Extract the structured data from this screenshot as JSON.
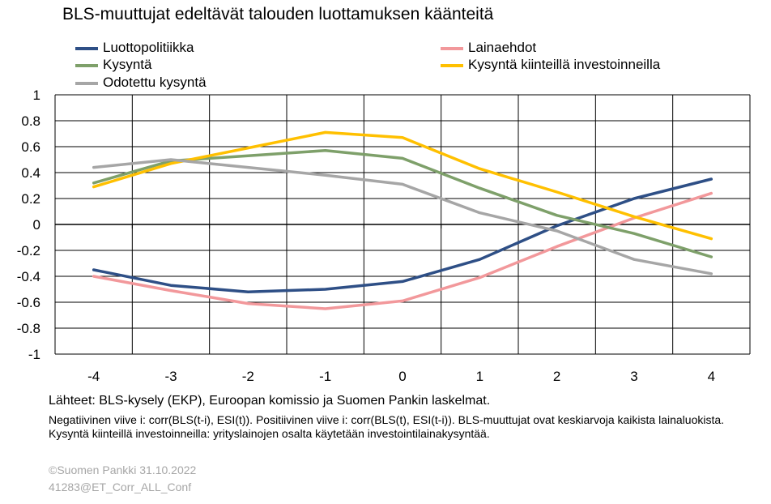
{
  "chart_data": {
    "type": "line",
    "title": "BLS-muuttujat edeltävät talouden luottamuksen käänteitä",
    "xlabel": "",
    "ylabel": "",
    "x": [
      -4,
      -3,
      -2,
      -1,
      0,
      1,
      2,
      3,
      4
    ],
    "x_tick_labels": [
      "-4",
      "-3",
      "-2",
      "-1",
      "0",
      "1",
      "2",
      "3",
      "4"
    ],
    "ylim": [
      -1,
      1
    ],
    "y_ticks": [
      1,
      0.8,
      0.6,
      0.4,
      0.2,
      0,
      -0.2,
      -0.4,
      -0.6,
      -0.8,
      -1
    ],
    "y_tick_labels": [
      "1",
      "0.8",
      "0.6",
      "0.4",
      "0.2",
      "0",
      "-0.2",
      "-0.4",
      "-0.6",
      "-0.8",
      "-1"
    ],
    "grid": true,
    "legend_position": "top",
    "series": [
      {
        "name": "Luottopolitiikka",
        "color": "#2e4f86",
        "values": [
          -0.35,
          -0.47,
          -0.52,
          -0.5,
          -0.44,
          -0.27,
          -0.01,
          0.2,
          0.35
        ]
      },
      {
        "name": "Lainaehdot",
        "color": "#f2989b",
        "values": [
          -0.4,
          -0.51,
          -0.61,
          -0.65,
          -0.59,
          -0.41,
          -0.17,
          0.05,
          0.24
        ]
      },
      {
        "name": "Kysyntä",
        "color": "#7ea06a",
        "values": [
          0.32,
          0.49,
          0.53,
          0.57,
          0.51,
          0.28,
          0.07,
          -0.07,
          -0.25
        ]
      },
      {
        "name": "Kysyntä kiinteillä investoinneilla",
        "color": "#ffc000",
        "values": [
          0.29,
          0.47,
          0.59,
          0.71,
          0.67,
          0.43,
          0.25,
          0.06,
          -0.11
        ]
      },
      {
        "name": "Odotettu kysyntä",
        "color": "#a6a6a6",
        "values": [
          0.44,
          0.5,
          0.44,
          0.38,
          0.31,
          0.09,
          -0.05,
          -0.27,
          -0.38
        ]
      }
    ]
  },
  "footer": {
    "source": "Lähteet: BLS-kysely (EKP), Euroopan komissio ja Suomen Pankin laskelmat.",
    "note": "Negatiivinen viive i: corr(BLS(t-i), ESI(t)). Positiivinen viive i: corr(BLS(t), ESI(t-i)). BLS-muuttujat ovat keskiarvoja kaikista lainaluokista. Kysyntä kiinteillä investoinneilla: yrityslainojen osalta käytetään investointilainakysyntää.",
    "copyright": "©Suomen Pankki 31.10.2022",
    "chart_id": "41283@ET_Corr_ALL_Conf"
  }
}
